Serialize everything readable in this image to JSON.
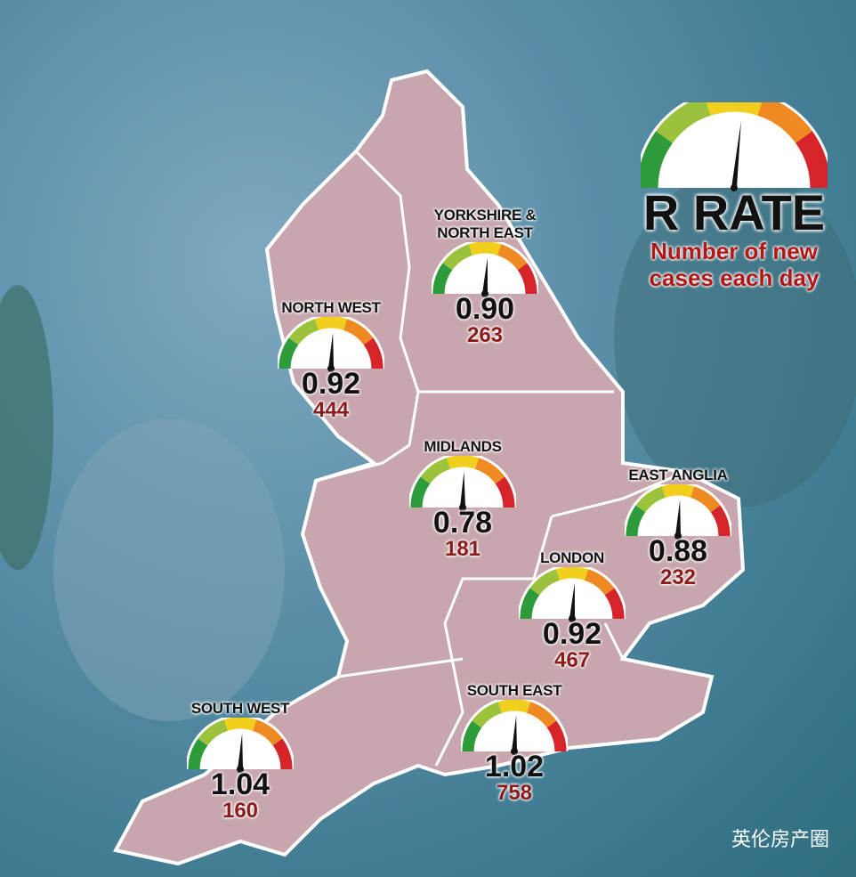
{
  "legend": {
    "title": "R RATE",
    "subtitle": "Number of new cases each day"
  },
  "regions": [
    {
      "name": "YORKSHIRE & NORTH EAST",
      "r": "0.90",
      "cases": 263
    },
    {
      "name": "NORTH WEST",
      "r": "0.92",
      "cases": 444
    },
    {
      "name": "MIDLANDS",
      "r": "0.78",
      "cases": 181
    },
    {
      "name": "EAST ANGLIA",
      "r": "0.88",
      "cases": 232
    },
    {
      "name": "LONDON",
      "r": "0.92",
      "cases": 467
    },
    {
      "name": "SOUTH EAST",
      "r": "1.02",
      "cases": 758
    },
    {
      "name": "SOUTH WEST",
      "r": "1.04",
      "cases": 160
    }
  ],
  "watermark": "英伦房产圈"
}
